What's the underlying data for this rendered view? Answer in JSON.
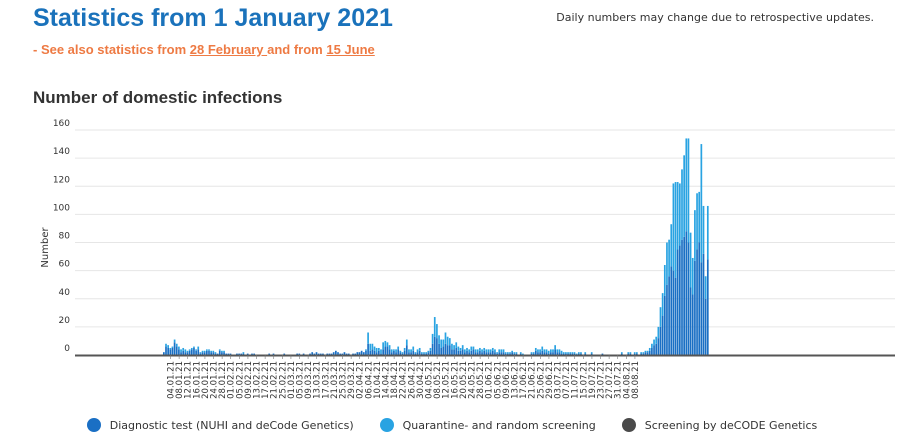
{
  "header": {
    "title": "Statistics from 1 January 2021",
    "sub_prefix": "- See also statistics from ",
    "sub_link1": "28 February ",
    "sub_mid": "and from ",
    "sub_link2": "15 June",
    "note": "Daily numbers may change due to retrospective updates."
  },
  "colors": {
    "diagnostic": "#1a6fc4",
    "quarantine": "#29a3e2",
    "decode": "#4a4a4a",
    "accent": "#ee7a43",
    "title": "#1a72bb"
  },
  "chart_data": {
    "type": "bar",
    "stacked": true,
    "title": "Number of domestic infections",
    "ylabel": "Number",
    "xlabel": "",
    "ylim": [
      0,
      160
    ],
    "yticks": [
      0,
      20,
      40,
      60,
      80,
      100,
      120,
      140,
      160
    ],
    "start_date": "2021-01-01",
    "end_date": "2021-08-09",
    "tick_labels": [
      "04.01.21",
      "08.01.21",
      "12.01.21",
      "16.01.21",
      "20.01.21",
      "24.01.21",
      "28.01.21",
      "01.02.21",
      "05.02.21",
      "09.02.21",
      "13.02.21",
      "17.02.21",
      "21.02.21",
      "25.02.21",
      "01.03.21",
      "05.03.21",
      "09.03.21",
      "13.03.21",
      "17.03.21",
      "21.03.21",
      "25.03.21",
      "29.03.21",
      "02.04.21",
      "06.04.21",
      "10.04.21",
      "14.04.21",
      "18.04.21",
      "22.04.21",
      "26.04.21",
      "30.04.21",
      "04.05.21",
      "08.05.21",
      "12.05.21",
      "16.05.21",
      "20.05.21",
      "24.05.21",
      "28.05.21",
      "01.06.21",
      "05.06.21",
      "09.06.21",
      "13.06.21",
      "17.06.21",
      "21.06.21",
      "25.06.21",
      "29.06.21",
      "03.07.21",
      "07.07.21",
      "11.07.21",
      "15.07.21",
      "19.07.21",
      "23.07.21",
      "27.07.21",
      "31.07.21",
      "04.08.21",
      "08.08.21"
    ],
    "grid": true,
    "legend_position": "bottom",
    "series": [
      {
        "name": "Diagnostic test (NUHI and deCode Genetics)",
        "values": [
          2,
          6,
          5,
          4,
          5,
          9,
          6,
          4,
          2,
          3,
          2,
          2,
          3,
          4,
          5,
          3,
          4,
          1,
          2,
          2,
          3,
          3,
          2,
          2,
          1,
          1,
          3,
          2,
          2,
          1,
          1,
          1,
          0,
          0,
          1,
          1,
          1,
          1,
          0,
          1,
          0,
          1,
          1,
          0,
          0,
          0,
          0,
          0,
          0,
          1,
          0,
          1,
          0,
          0,
          0,
          0,
          1,
          0,
          0,
          0,
          0,
          0,
          1,
          1,
          0,
          1,
          0,
          0,
          1,
          2,
          1,
          2,
          1,
          1,
          1,
          0,
          1,
          1,
          1,
          2,
          3,
          2,
          1,
          1,
          2,
          1,
          1,
          0,
          1,
          1,
          2,
          2,
          3,
          2,
          3,
          8,
          3,
          4,
          3,
          2,
          3,
          1,
          4,
          6,
          6,
          4,
          2,
          3,
          2,
          4,
          2,
          1,
          3,
          7,
          2,
          2,
          3,
          1,
          2,
          3,
          1,
          1,
          1,
          2,
          3,
          8,
          13,
          12,
          8,
          5,
          6,
          8,
          7,
          7,
          4,
          4,
          5,
          3,
          3,
          4,
          2,
          3,
          2,
          3,
          4,
          2,
          2,
          3,
          2,
          3,
          2,
          2,
          2,
          3,
          2,
          1,
          2,
          2,
          2,
          1,
          1,
          1,
          2,
          1,
          1,
          0,
          1,
          0,
          0,
          0,
          0,
          1,
          1,
          3,
          2,
          2,
          3,
          2,
          2,
          1,
          2,
          2,
          4,
          2,
          2,
          1,
          1,
          1,
          1,
          1,
          1,
          1,
          0,
          1,
          1,
          0,
          1,
          0,
          0,
          1,
          0,
          0,
          0,
          0,
          1,
          0,
          0,
          0,
          0,
          0,
          0,
          0,
          0,
          1,
          0,
          0,
          1,
          1,
          0,
          1,
          1,
          0,
          1,
          1,
          2,
          2,
          3,
          5,
          7,
          8,
          12,
          20,
          28,
          42,
          50,
          56,
          63,
          60,
          55,
          75,
          78,
          82,
          84,
          88,
          80,
          48,
          43,
          67,
          75,
          80,
          66,
          72,
          40,
          68
        ]
      },
      {
        "name": "Quarantine- and random screening",
        "values": [
          0,
          2,
          2,
          1,
          1,
          2,
          2,
          2,
          2,
          2,
          2,
          1,
          1,
          1,
          1,
          1,
          2,
          1,
          1,
          1,
          1,
          1,
          1,
          1,
          1,
          0,
          1,
          1,
          1,
          0,
          0,
          0,
          0,
          0,
          0,
          0,
          0,
          1,
          0,
          0,
          0,
          0,
          0,
          0,
          0,
          0,
          0,
          0,
          0,
          0,
          0,
          0,
          0,
          0,
          0,
          0,
          0,
          0,
          0,
          0,
          0,
          0,
          0,
          0,
          0,
          0,
          0,
          0,
          0,
          0,
          0,
          0,
          0,
          0,
          0,
          0,
          0,
          0,
          0,
          0,
          0,
          0,
          0,
          0,
          0,
          0,
          0,
          0,
          0,
          0,
          0,
          0,
          0,
          0,
          1,
          8,
          5,
          4,
          3,
          3,
          2,
          3,
          5,
          4,
          3,
          3,
          2,
          1,
          2,
          2,
          1,
          1,
          2,
          4,
          2,
          2,
          3,
          1,
          2,
          2,
          1,
          1,
          1,
          1,
          2,
          7,
          14,
          10,
          6,
          6,
          5,
          8,
          6,
          5,
          4,
          3,
          4,
          3,
          2,
          3,
          2,
          2,
          2,
          3,
          2,
          2,
          2,
          2,
          2,
          2,
          2,
          2,
          2,
          2,
          2,
          1,
          2,
          2,
          2,
          1,
          1,
          1,
          1,
          1,
          1,
          0,
          1,
          1,
          0,
          0,
          0,
          1,
          1,
          2,
          2,
          2,
          3,
          2,
          2,
          2,
          2,
          2,
          3,
          2,
          2,
          2,
          1,
          1,
          1,
          1,
          1,
          1,
          1,
          1,
          1,
          0,
          1,
          0,
          0,
          1,
          0,
          0,
          0,
          0,
          0,
          0,
          0,
          0,
          0,
          0,
          0,
          0,
          0,
          1,
          0,
          0,
          1,
          1,
          0,
          1,
          1,
          0,
          1,
          1,
          1,
          1,
          2,
          3,
          4,
          5,
          8,
          14,
          16,
          22,
          30,
          26,
          30,
          62,
          68,
          48,
          44,
          50,
          58,
          66,
          74,
          39,
          26,
          36,
          40,
          36,
          84,
          34,
          16,
          38
        ]
      },
      {
        "name": "Screening by deCODE Genetics",
        "values": [
          0,
          0,
          0,
          0,
          0,
          0,
          0,
          0,
          0,
          0,
          0,
          0,
          0,
          0,
          0,
          0,
          0,
          0,
          0,
          0,
          0,
          0,
          0,
          0,
          0,
          0,
          0,
          0,
          0,
          0,
          0,
          0,
          0,
          0,
          0,
          0,
          0,
          0,
          0,
          0,
          0,
          0,
          0,
          0,
          0,
          0,
          0,
          0,
          0,
          0,
          0,
          0,
          0,
          0,
          0,
          0,
          0,
          0,
          0,
          0,
          0,
          0,
          0,
          0,
          0,
          0,
          0,
          0,
          0,
          0,
          0,
          0,
          0,
          0,
          0,
          0,
          0,
          0,
          0,
          0,
          0,
          0,
          0,
          0,
          0,
          0,
          0,
          0,
          0,
          0,
          0,
          0,
          0,
          0,
          0,
          0,
          0,
          0,
          0,
          0,
          0,
          0,
          0,
          0,
          0,
          0,
          0,
          0,
          0,
          0,
          0,
          0,
          0,
          0,
          0,
          0,
          0,
          0,
          0,
          0,
          0,
          0,
          0,
          0,
          0,
          0,
          0,
          0,
          0,
          0,
          0,
          0,
          0,
          0,
          0,
          0,
          0,
          0,
          0,
          0,
          0,
          0,
          0,
          0,
          0,
          0,
          0,
          0,
          0,
          0,
          0,
          0,
          0,
          0,
          0,
          0,
          0,
          0,
          0,
          0,
          0,
          0,
          0,
          0,
          0,
          0,
          0,
          0,
          0,
          0,
          0,
          0,
          0,
          0,
          0,
          0,
          0,
          0,
          0,
          0,
          0,
          0,
          0,
          0,
          0,
          0,
          0,
          0,
          0,
          0,
          0,
          0,
          0,
          0,
          0,
          0,
          0,
          0,
          0,
          0,
          0,
          0,
          0,
          0,
          0,
          0,
          0,
          0,
          0,
          0,
          0,
          0,
          0,
          0,
          0,
          0,
          0,
          0,
          0,
          0,
          0,
          0,
          0,
          0,
          0,
          0,
          0,
          0,
          0,
          0,
          0,
          0,
          0,
          0,
          0,
          0,
          0,
          0,
          0,
          0,
          0,
          0,
          0,
          0,
          0,
          0,
          0,
          0,
          0,
          0,
          0,
          0,
          0,
          0,
          0,
          0,
          0,
          0,
          0
        ]
      }
    ]
  }
}
